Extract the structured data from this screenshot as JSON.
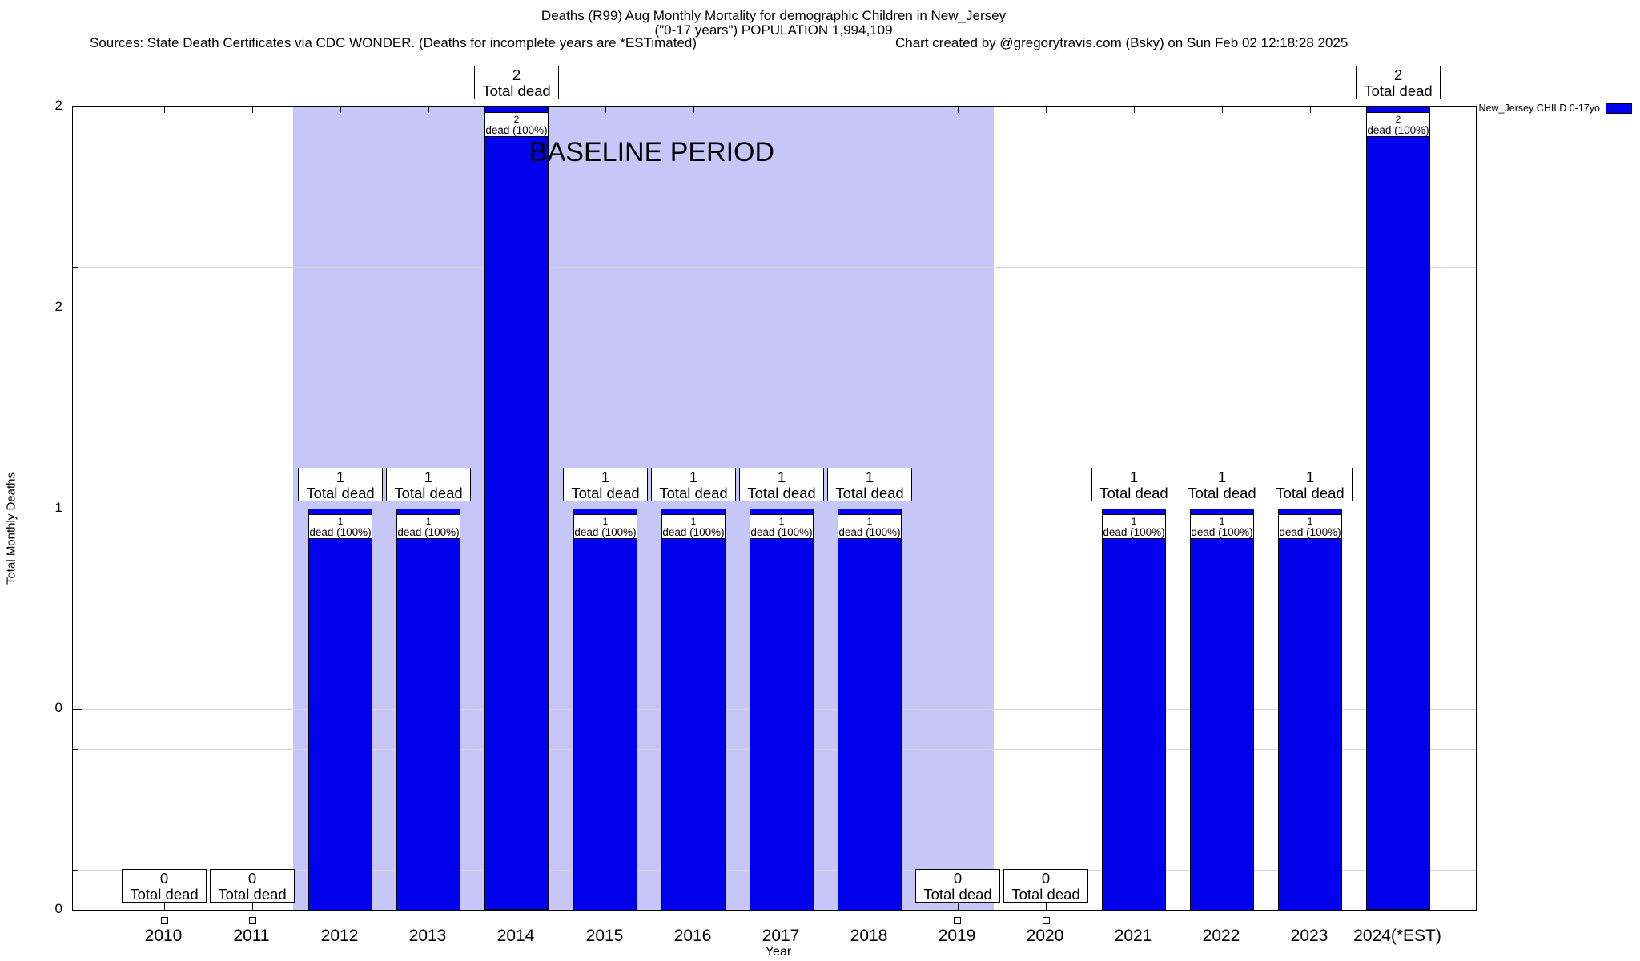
{
  "header": {
    "title_line1": "Deaths (R99) Aug Monthly Mortality for demographic Children in New_Jersey",
    "title_line2": "(\"0-17 years\") POPULATION 1,994,109",
    "sources": "Sources: State Death Certificates via CDC WONDER. (Deaths for incomplete years are *ESTimated)",
    "credit": "Chart created by @gregorytravis.com (Bsky) on Sun Feb 02 12:18:28 2025"
  },
  "legend": {
    "label": "New_Jersey CHILD 0-17yo",
    "position": "top-right"
  },
  "baseline_band": {
    "label": "BASELINE PERIOD",
    "start_year": "2012",
    "end_year": "2019"
  },
  "axes": {
    "ylabel": "Total Monthly Deaths",
    "xlabel": "Year",
    "ytick_labels_top_to_bottom": [
      "2",
      "2",
      "1",
      "0",
      "0"
    ],
    "ytick_values_top_to_bottom": [
      2.0,
      1.5,
      1.0,
      0.5,
      0.0
    ],
    "grid": true,
    "grid_step": 0.1
  },
  "labels": {
    "total_box": "Total dead",
    "pct_box": "dead (100%)"
  },
  "colors": {
    "bar": "#0101ee",
    "band": "#c6c6f8",
    "grid": "#d6d6d6",
    "background": "#ffffff"
  },
  "chart_data": {
    "type": "bar",
    "title": "Deaths (R99) Aug Monthly Mortality for demographic Children in New_Jersey (\"0-17 years\") POPULATION 1,994,109",
    "xlabel": "Year",
    "ylabel": "Total Monthly Deaths",
    "ylim": [
      0,
      2
    ],
    "legend_position": "top-right",
    "grid": true,
    "categories": [
      "2010",
      "2011",
      "2012",
      "2013",
      "2014",
      "2015",
      "2016",
      "2017",
      "2018",
      "2019",
      "2020",
      "2021",
      "2022",
      "2023",
      "2024(*EST)"
    ],
    "series": [
      {
        "name": "New_Jersey CHILD 0-17yo",
        "values": [
          0,
          0,
          1,
          1,
          2,
          1,
          1,
          1,
          1,
          0,
          0,
          1,
          1,
          1,
          2
        ],
        "pct_of_total": [
          null,
          null,
          100,
          100,
          100,
          100,
          100,
          100,
          100,
          null,
          null,
          100,
          100,
          100,
          100
        ]
      }
    ],
    "annotations": {
      "baseline_period_years": [
        "2012",
        "2013",
        "2014",
        "2015",
        "2016",
        "2017",
        "2018",
        "2019"
      ],
      "above_bar_box_format": "{value} Total dead",
      "inside_bar_box_format": "{value} dead (100%)"
    }
  }
}
